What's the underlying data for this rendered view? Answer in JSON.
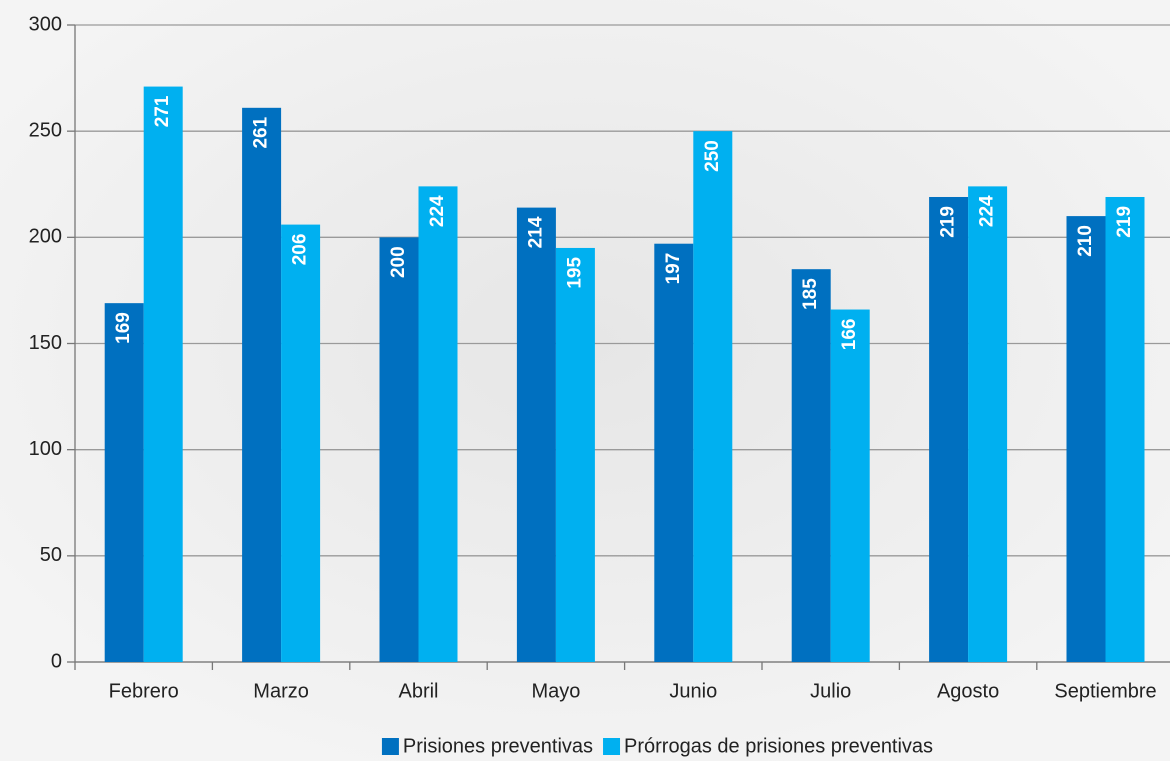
{
  "chart_data": {
    "type": "bar",
    "categories": [
      "Febrero",
      "Marzo",
      "Abril",
      "Mayo",
      "Junio",
      "Julio",
      "Agosto",
      "Septiembre"
    ],
    "series": [
      {
        "name": "Prisiones preventivas",
        "color": "#0070c0",
        "values": [
          169,
          261,
          200,
          214,
          197,
          185,
          219,
          210
        ]
      },
      {
        "name": "Prórrogas de prisiones preventivas",
        "color": "#00b0f0",
        "values": [
          271,
          206,
          224,
          195,
          250,
          166,
          224,
          219
        ]
      }
    ],
    "ylim": [
      0,
      300
    ],
    "yticks": [
      0,
      50,
      100,
      150,
      200,
      250,
      300
    ],
    "grid": true,
    "legend": "bottom"
  }
}
